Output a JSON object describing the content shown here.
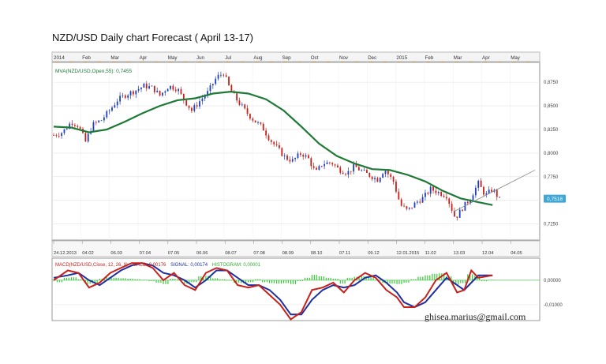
{
  "title": "NZD/USD Daily chart Forecast ( April 13-17)",
  "watermark": "ghisea.marius@gmail.com",
  "colors": {
    "up_candle": "#1f3fbf",
    "down_candle": "#c8201a",
    "ma_line": "#1e7a36",
    "macd_line": "#c8201a",
    "signal_line": "#1f2fa0",
    "histogram": "#33cc33",
    "price_marker": "#3fa7d6",
    "trendline": "#888888",
    "event_marker": "#e69a1e"
  },
  "chart_data": [
    {
      "type": "candlestick",
      "title": "NZD/USD Daily chart Forecast ( April 13-17)",
      "indicator_label": "MVA(NZD/USD,Open,55): 0,7455",
      "month_labels": [
        "2014",
        "Feb",
        "Mar",
        "Apr",
        "May",
        "Jun",
        "Jul",
        "Aug",
        "Sep",
        "Oct",
        "Nov",
        "Dec",
        "2015",
        "Feb",
        "Mar",
        "Apr",
        "May"
      ],
      "date_labels": [
        "24.12.2013",
        "04.02",
        "06.03",
        "07.04",
        "07.05",
        "06.06",
        "08.07",
        "07.08",
        "08.09",
        "08.10",
        "07.11",
        "09.12",
        "12.01.2015",
        "11.02",
        "13.03",
        "12.04",
        "04.05"
      ],
      "y_ticks": [
        "0,8750",
        "0,8500",
        "0,8250",
        "0,8000",
        "0,7750",
        "0,7500",
        "0,7250"
      ],
      "y_tick_values": [
        0.875,
        0.85,
        0.825,
        0.8,
        0.775,
        0.75,
        0.725
      ],
      "ylim": [
        0.708,
        0.896
      ],
      "last_price_label": "0,7518",
      "last_price": 0.7518,
      "price_path": [
        [
          0,
          0.819
        ],
        [
          5,
          0.822
        ],
        [
          10,
          0.833
        ],
        [
          14,
          0.829
        ],
        [
          18,
          0.812
        ],
        [
          22,
          0.83
        ],
        [
          27,
          0.835
        ],
        [
          32,
          0.846
        ],
        [
          36,
          0.856
        ],
        [
          41,
          0.862
        ],
        [
          46,
          0.866
        ],
        [
          51,
          0.871
        ],
        [
          56,
          0.869
        ],
        [
          60,
          0.861
        ],
        [
          65,
          0.871
        ],
        [
          70,
          0.868
        ],
        [
          73,
          0.858
        ],
        [
          78,
          0.845
        ],
        [
          83,
          0.856
        ],
        [
          87,
          0.864
        ],
        [
          92,
          0.88
        ],
        [
          96,
          0.885
        ],
        [
          100,
          0.866
        ],
        [
          104,
          0.855
        ],
        [
          109,
          0.843
        ],
        [
          113,
          0.835
        ],
        [
          118,
          0.827
        ],
        [
          122,
          0.815
        ],
        [
          126,
          0.806
        ],
        [
          131,
          0.795
        ],
        [
          135,
          0.792
        ],
        [
          140,
          0.8
        ],
        [
          144,
          0.794
        ],
        [
          148,
          0.779
        ],
        [
          152,
          0.789
        ],
        [
          157,
          0.79
        ],
        [
          161,
          0.783
        ],
        [
          166,
          0.779
        ],
        [
          170,
          0.786
        ],
        [
          174,
          0.781
        ],
        [
          179,
          0.776
        ],
        [
          183,
          0.772
        ],
        [
          187,
          0.783
        ],
        [
          192,
          0.77
        ],
        [
          196,
          0.745
        ],
        [
          200,
          0.739
        ],
        [
          205,
          0.748
        ],
        [
          209,
          0.753
        ],
        [
          213,
          0.762
        ],
        [
          218,
          0.758
        ],
        [
          222,
          0.755
        ],
        [
          227,
          0.731
        ],
        [
          231,
          0.742
        ],
        [
          235,
          0.751
        ],
        [
          240,
          0.768
        ],
        [
          244,
          0.755
        ],
        [
          248,
          0.762
        ],
        [
          252,
          0.751
        ]
      ],
      "ma_path": [
        [
          0,
          0.828
        ],
        [
          10,
          0.827
        ],
        [
          20,
          0.822
        ],
        [
          30,
          0.825
        ],
        [
          40,
          0.833
        ],
        [
          50,
          0.842
        ],
        [
          60,
          0.85
        ],
        [
          70,
          0.856
        ],
        [
          80,
          0.858
        ],
        [
          90,
          0.863
        ],
        [
          100,
          0.865
        ],
        [
          110,
          0.863
        ],
        [
          120,
          0.857
        ],
        [
          130,
          0.845
        ],
        [
          140,
          0.828
        ],
        [
          150,
          0.81
        ],
        [
          160,
          0.797
        ],
        [
          170,
          0.789
        ],
        [
          180,
          0.783
        ],
        [
          190,
          0.782
        ],
        [
          200,
          0.777
        ],
        [
          210,
          0.77
        ],
        [
          220,
          0.76
        ],
        [
          230,
          0.752
        ],
        [
          240,
          0.748
        ],
        [
          248,
          0.745
        ]
      ],
      "trendline": [
        [
          226,
          0.738
        ],
        [
          272,
          0.782
        ]
      ]
    },
    {
      "type": "line",
      "indicator_label": "MACD(NZD/USD,Close, 12, 26, 9)",
      "macd_label": "MACD: 0,00176",
      "signal_label": "SIGNAL: 0,00174",
      "histogram_label": "HISTOGRAM: 0,00001",
      "y_ticks": [
        "0,00000",
        "-0,01000"
      ],
      "y_tick_values": [
        0,
        -0.01
      ],
      "ylim": [
        -0.0165,
        0.009
      ],
      "macd": [
        [
          0,
          0.0
        ],
        [
          8,
          0.004
        ],
        [
          14,
          0.003
        ],
        [
          20,
          -0.003
        ],
        [
          26,
          -0.001
        ],
        [
          32,
          0.003
        ],
        [
          38,
          0.005
        ],
        [
          44,
          0.007
        ],
        [
          50,
          0.007
        ],
        [
          56,
          0.005
        ],
        [
          62,
          0.0
        ],
        [
          68,
          0.003
        ],
        [
          74,
          -0.002
        ],
        [
          80,
          -0.004
        ],
        [
          86,
          0.003
        ],
        [
          92,
          0.005
        ],
        [
          98,
          0.004
        ],
        [
          104,
          -0.002
        ],
        [
          110,
          -0.003
        ],
        [
          116,
          -0.002
        ],
        [
          122,
          -0.006
        ],
        [
          128,
          -0.01
        ],
        [
          134,
          -0.016
        ],
        [
          140,
          -0.013
        ],
        [
          146,
          -0.004
        ],
        [
          152,
          -0.003
        ],
        [
          158,
          -0.001
        ],
        [
          164,
          -0.005
        ],
        [
          170,
          0.0
        ],
        [
          176,
          0.003
        ],
        [
          182,
          0.001
        ],
        [
          188,
          -0.004
        ],
        [
          194,
          -0.007
        ],
        [
          198,
          -0.011
        ],
        [
          204,
          -0.011
        ],
        [
          210,
          -0.007
        ],
        [
          216,
          0.0
        ],
        [
          222,
          0.003
        ],
        [
          228,
          -0.005
        ],
        [
          232,
          -0.004
        ],
        [
          236,
          0.004
        ],
        [
          240,
          0.001
        ],
        [
          248,
          0.002
        ]
      ],
      "signal": [
        [
          0,
          0.001
        ],
        [
          8,
          0.002
        ],
        [
          14,
          0.003
        ],
        [
          20,
          0.0
        ],
        [
          26,
          -0.002
        ],
        [
          32,
          0.001
        ],
        [
          38,
          0.004
        ],
        [
          44,
          0.006
        ],
        [
          50,
          0.007
        ],
        [
          56,
          0.006
        ],
        [
          62,
          0.003
        ],
        [
          68,
          0.002
        ],
        [
          74,
          0.0
        ],
        [
          80,
          -0.003
        ],
        [
          86,
          0.0
        ],
        [
          92,
          0.004
        ],
        [
          98,
          0.004
        ],
        [
          104,
          0.001
        ],
        [
          110,
          -0.002
        ],
        [
          116,
          -0.002
        ],
        [
          122,
          -0.004
        ],
        [
          128,
          -0.008
        ],
        [
          134,
          -0.014
        ],
        [
          140,
          -0.014
        ],
        [
          146,
          -0.008
        ],
        [
          152,
          -0.004
        ],
        [
          158,
          -0.002
        ],
        [
          164,
          -0.003
        ],
        [
          170,
          -0.002
        ],
        [
          176,
          0.001
        ],
        [
          182,
          0.002
        ],
        [
          188,
          -0.001
        ],
        [
          194,
          -0.005
        ],
        [
          198,
          -0.009
        ],
        [
          204,
          -0.011
        ],
        [
          210,
          -0.009
        ],
        [
          216,
          -0.004
        ],
        [
          222,
          0.001
        ],
        [
          228,
          -0.002
        ],
        [
          232,
          -0.004
        ],
        [
          236,
          -0.001
        ],
        [
          240,
          0.002
        ],
        [
          248,
          0.002
        ]
      ],
      "histogram": [
        [
          2,
          -0.0008
        ],
        [
          6,
          0.001
        ],
        [
          10,
          0.0012
        ],
        [
          14,
          0.0004
        ],
        [
          18,
          -0.0015
        ],
        [
          22,
          -0.0012
        ],
        [
          26,
          0.0006
        ],
        [
          30,
          0.0012
        ],
        [
          34,
          0.001
        ],
        [
          38,
          0.0008
        ],
        [
          42,
          0.0006
        ],
        [
          46,
          0.0004
        ],
        [
          50,
          0.0002
        ],
        [
          54,
          -0.0004
        ],
        [
          58,
          -0.001
        ],
        [
          62,
          -0.0016
        ],
        [
          66,
          0.0006
        ],
        [
          70,
          0.0004
        ],
        [
          74,
          -0.0014
        ],
        [
          78,
          -0.0008
        ],
        [
          82,
          0.0016
        ],
        [
          86,
          0.0018
        ],
        [
          90,
          0.0008
        ],
        [
          94,
          0.0004
        ],
        [
          98,
          -0.0002
        ],
        [
          102,
          -0.001
        ],
        [
          106,
          -0.0012
        ],
        [
          110,
          -0.0008
        ],
        [
          114,
          0.0004
        ],
        [
          118,
          -0.0008
        ],
        [
          122,
          -0.0012
        ],
        [
          126,
          -0.0014
        ],
        [
          130,
          -0.0012
        ],
        [
          134,
          -0.0016
        ],
        [
          138,
          -0.0004
        ],
        [
          142,
          0.001
        ],
        [
          146,
          0.0022
        ],
        [
          150,
          0.0016
        ],
        [
          154,
          0.001
        ],
        [
          158,
          0.0006
        ],
        [
          162,
          -0.0014
        ],
        [
          166,
          0.001
        ],
        [
          170,
          0.0014
        ],
        [
          174,
          0.0016
        ],
        [
          178,
          0.0012
        ],
        [
          182,
          -0.0002
        ],
        [
          186,
          -0.0012
        ],
        [
          190,
          -0.0014
        ],
        [
          194,
          -0.0016
        ],
        [
          198,
          -0.001
        ],
        [
          202,
          0.0004
        ],
        [
          206,
          0.0014
        ],
        [
          210,
          0.002
        ],
        [
          214,
          0.0026
        ],
        [
          218,
          0.0028
        ],
        [
          222,
          0.0016
        ],
        [
          226,
          -0.0018
        ],
        [
          230,
          -0.0012
        ],
        [
          234,
          0.0024
        ],
        [
          238,
          0.0018
        ],
        [
          242,
          -0.0004
        ],
        [
          246,
          0.0002
        ]
      ]
    }
  ]
}
